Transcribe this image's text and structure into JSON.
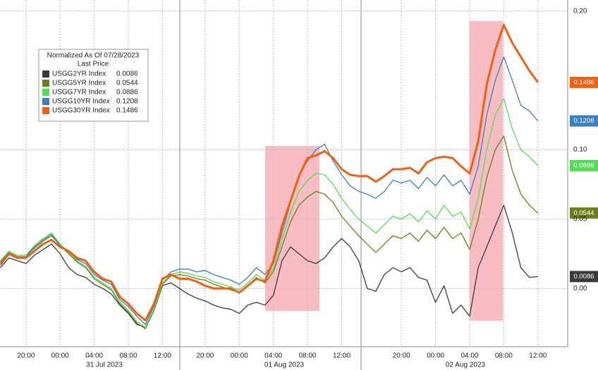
{
  "chart_data": {
    "type": "line",
    "legend_title": "Normalized As Of 07/28/2023",
    "legend_subtitle": "Last Price",
    "categories": [
      null,
      null,
      null,
      "20:00",
      null,
      null,
      null,
      "00:00",
      null,
      null,
      null,
      "04:00",
      null,
      null,
      null,
      "08:00",
      null,
      null,
      null,
      "12:00",
      null,
      null,
      null,
      null,
      "20:00",
      null,
      null,
      null,
      "00:00",
      null,
      null,
      null,
      "04:00",
      null,
      null,
      null,
      "08:00",
      null,
      null,
      null,
      "12:00",
      null,
      null,
      null,
      null,
      null,
      null,
      "20:00",
      null,
      null,
      null,
      "00:00",
      null,
      null,
      null,
      "04:00",
      null,
      null,
      null,
      "08:00",
      null,
      null,
      null,
      "12:00"
    ],
    "date_labels": [
      "31 Jul 2023",
      "01 Aug 2023",
      "02 Aug 2023"
    ],
    "ylim": [
      -0.041,
      0.208
    ],
    "yticks": [
      {
        "value": 0.2,
        "label": "0.20"
      },
      {
        "value": 0.1,
        "label": "0.10"
      },
      {
        "value": 0.05,
        "label": "0.05"
      },
      {
        "value": 0,
        "label": "0.00"
      }
    ],
    "grid": true,
    "series": [
      {
        "name": "USGG2YR Index",
        "color": "#3a3a3a",
        "values": [
          0.015,
          0.022,
          0.02,
          0.018,
          0.024,
          0.028,
          0.032,
          0.025,
          0.015,
          0.01,
          0.008,
          0.003,
          0.0,
          -0.004,
          -0.012,
          -0.018,
          -0.026,
          -0.028,
          -0.016,
          0.002,
          0.004,
          0.0,
          -0.004,
          -0.007,
          -0.009,
          -0.012,
          -0.014,
          -0.015,
          -0.018,
          -0.012,
          -0.01,
          -0.012,
          -0.005,
          0.02,
          0.03,
          0.025,
          0.02,
          0.018,
          0.022,
          0.03,
          0.036,
          0.03,
          0.02,
          0.0,
          -0.002,
          0.01,
          0.015,
          0.012,
          0.015,
          0.008,
          0.006,
          -0.01,
          0.002,
          -0.018,
          -0.012,
          -0.02,
          0.015,
          0.03,
          0.045,
          0.06,
          0.04,
          0.015,
          0.008,
          0.0086
        ]
      },
      {
        "name": "USGG5YR Index",
        "color": "#6b7f1a",
        "values": [
          0.019,
          0.026,
          0.023,
          0.023,
          0.03,
          0.035,
          0.039,
          0.031,
          0.025,
          0.019,
          0.015,
          0.007,
          0.003,
          -0.001,
          -0.011,
          -0.017,
          -0.025,
          -0.029,
          -0.016,
          0.003,
          0.009,
          0.01,
          0.009,
          0.007,
          0.006,
          0.003,
          0.001,
          -0.001,
          -0.003,
          0.002,
          0.008,
          0.004,
          0.012,
          0.03,
          0.048,
          0.06,
          0.066,
          0.07,
          0.068,
          0.062,
          0.052,
          0.045,
          0.038,
          0.032,
          0.026,
          0.032,
          0.038,
          0.036,
          0.04,
          0.034,
          0.042,
          0.036,
          0.044,
          0.036,
          0.04,
          0.028,
          0.05,
          0.08,
          0.1,
          0.11,
          0.085,
          0.068,
          0.06,
          0.0544
        ]
      },
      {
        "name": "USGG7YR Index",
        "color": "#55dd55",
        "values": [
          0.02,
          0.027,
          0.024,
          0.024,
          0.031,
          0.036,
          0.04,
          0.032,
          0.026,
          0.02,
          0.016,
          0.008,
          0.004,
          0.0,
          -0.01,
          -0.016,
          -0.024,
          -0.028,
          -0.015,
          0.004,
          0.01,
          0.012,
          0.011,
          0.009,
          0.008,
          0.005,
          0.003,
          0.001,
          -0.001,
          0.004,
          0.01,
          0.006,
          0.014,
          0.035,
          0.055,
          0.07,
          0.078,
          0.083,
          0.082,
          0.075,
          0.065,
          0.057,
          0.05,
          0.045,
          0.04,
          0.046,
          0.052,
          0.05,
          0.054,
          0.048,
          0.056,
          0.05,
          0.06,
          0.052,
          0.055,
          0.043,
          0.065,
          0.1,
          0.125,
          0.137,
          0.115,
          0.1,
          0.095,
          0.0886
        ]
      },
      {
        "name": "USGG10YR Index",
        "color": "#3a7fc0",
        "values": [
          0.018,
          0.026,
          0.022,
          0.023,
          0.029,
          0.034,
          0.038,
          0.031,
          0.027,
          0.021,
          0.018,
          0.01,
          0.006,
          0.003,
          -0.008,
          -0.013,
          -0.02,
          -0.026,
          -0.013,
          0.006,
          0.012,
          0.014,
          0.014,
          0.012,
          0.013,
          0.01,
          0.008,
          0.006,
          0.003,
          0.008,
          0.015,
          0.01,
          0.018,
          0.04,
          0.062,
          0.082,
          0.092,
          0.1,
          0.104,
          0.092,
          0.082,
          0.074,
          0.07,
          0.068,
          0.065,
          0.07,
          0.078,
          0.076,
          0.078,
          0.072,
          0.08,
          0.074,
          0.082,
          0.074,
          0.078,
          0.068,
          0.088,
          0.125,
          0.15,
          0.167,
          0.15,
          0.132,
          0.128,
          0.1208
        ]
      },
      {
        "name": "USGG30YR Index",
        "color": "#f06010",
        "values": [
          0.017,
          0.025,
          0.022,
          0.022,
          0.027,
          0.032,
          0.035,
          0.03,
          0.027,
          0.022,
          0.02,
          0.012,
          0.007,
          0.005,
          -0.006,
          -0.011,
          -0.018,
          -0.023,
          -0.011,
          0.007,
          0.01,
          0.007,
          0.007,
          0.005,
          0.002,
          0.0,
          0.0,
          0.0,
          -0.003,
          0.002,
          0.007,
          0.005,
          0.02,
          0.045,
          0.063,
          0.081,
          0.094,
          0.096,
          0.099,
          0.094,
          0.086,
          0.082,
          0.081,
          0.081,
          0.077,
          0.081,
          0.086,
          0.086,
          0.087,
          0.083,
          0.091,
          0.094,
          0.095,
          0.094,
          0.088,
          0.083,
          0.106,
          0.147,
          0.172,
          0.19,
          0.177,
          0.167,
          0.157,
          0.1486
        ]
      }
    ]
  }
}
